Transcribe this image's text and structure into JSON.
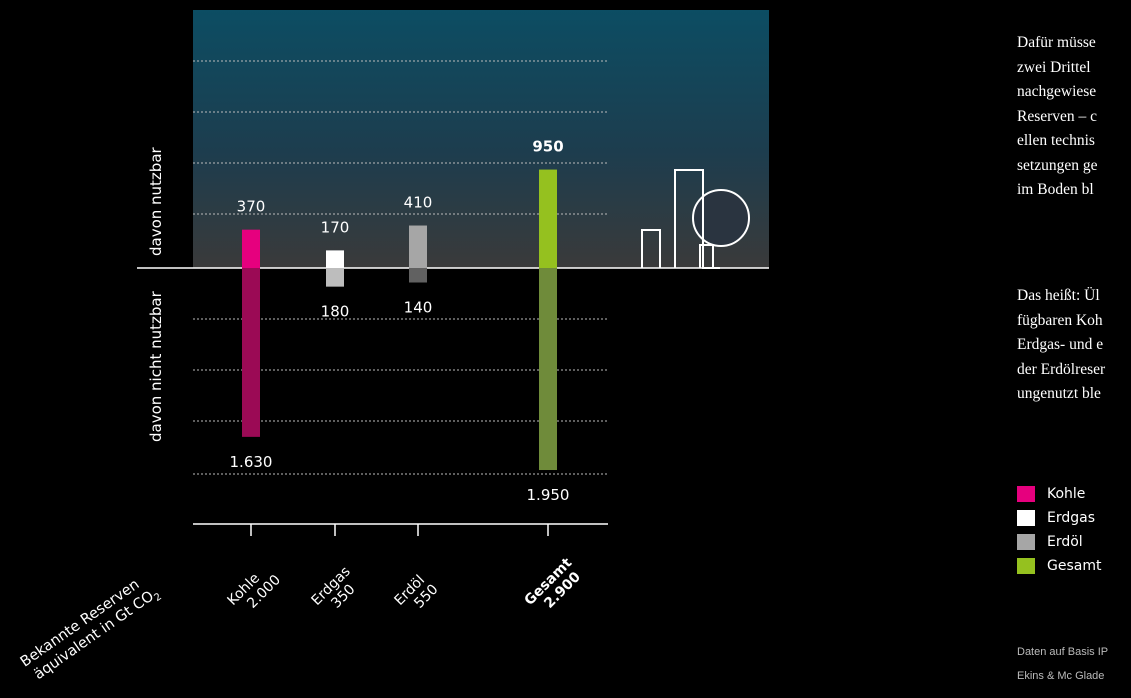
{
  "chart_data": {
    "type": "bar",
    "unit": "Gt CO2",
    "axis_label_lines": [
      "Bekannte Reserven",
      "äquivalent in Gt CO"
    ],
    "axis_label_subscript": "2",
    "upper_label": "davon nutzbar",
    "lower_label": "davon nicht nutzbar",
    "categories": [
      {
        "name": "Kohle",
        "total_label": "2.000",
        "total": 2000,
        "usable": 370,
        "usable_label": "370",
        "unusable": 1630,
        "unusable_label": "1.630",
        "color_up": "#e6007e",
        "color_down": "#9b0a55"
      },
      {
        "name": "Erdgas",
        "total_label": "350",
        "total": 350,
        "usable": 170,
        "usable_label": "170",
        "unusable": 180,
        "unusable_label": "180",
        "color_up": "#ffffff",
        "color_down": "#bdbdbd"
      },
      {
        "name": "Erdöl",
        "total_label": "550",
        "total": 550,
        "usable": 410,
        "usable_label": "410",
        "unusable": 140,
        "unusable_label": "140",
        "color_up": "#a6a6a6",
        "color_down": "#616161"
      },
      {
        "name": "Gesamt",
        "total_label": "2.900",
        "total": 2900,
        "usable": 950,
        "usable_label": "950",
        "unusable": 1950,
        "unusable_label": "1.950",
        "color_up": "#95c11f",
        "color_down": "#6f8b3a"
      }
    ],
    "grid": true,
    "legend_position": "right"
  },
  "legend": [
    {
      "label": "Kohle",
      "color": "#e6007e"
    },
    {
      "label": "Erdgas",
      "color": "#ffffff"
    },
    {
      "label": "Erdöl",
      "color": "#a6a6a6"
    },
    {
      "label": "Gesamt",
      "color": "#95c11f"
    }
  ],
  "text": {
    "para1": [
      "Dafür müsse",
      "zwei Drittel",
      "nachgewiese",
      "Reserven – c",
      "ellen technis",
      "setzungen ge",
      "im Boden bl"
    ],
    "para2": [
      "Das heißt: Ül",
      "fügbaren Koh",
      "Erdgas- und e",
      "der Erdölreser",
      "ungenutzt ble"
    ],
    "source": [
      "Daten auf Basis IP",
      "Ekins & Mc Glade"
    ]
  }
}
